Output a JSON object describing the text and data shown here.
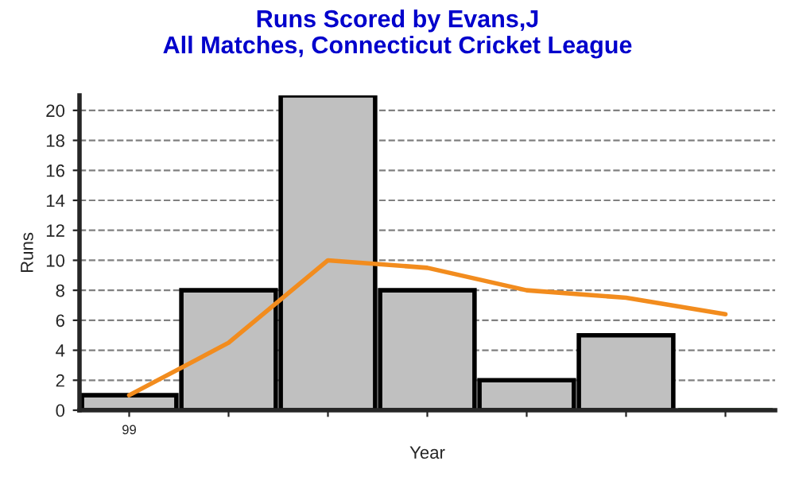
{
  "chart_data": {
    "type": "bar",
    "title": "Runs Scored by Evans,J\nAll Matches, Connecticut Cricket League",
    "xlabel": "Year",
    "ylabel": "Runs",
    "categories": [
      "99",
      null,
      null,
      null,
      null,
      null,
      null
    ],
    "series": [
      {
        "colors": [
          "#c0c0c0",
          "#c0c0c0",
          "#c0c0c0",
          "#c0c0c0",
          "#c0c0c0",
          "#c0c0c0",
          "#1e4d1e"
        ],
        "values": [
          1,
          8,
          21,
          8,
          2,
          5,
          0
        ]
      },
      {
        "type": "line",
        "color": "#f28c1e",
        "values": [
          1,
          4.5,
          10,
          9.5,
          8,
          7.5,
          6.4
        ]
      }
    ],
    "ylim": [
      0,
      21
    ],
    "yticks": [
      0,
      2,
      4,
      6,
      8,
      10,
      12,
      14,
      16,
      18,
      20
    ],
    "grid": "y",
    "marker": "none",
    "line_style": "solid"
  }
}
